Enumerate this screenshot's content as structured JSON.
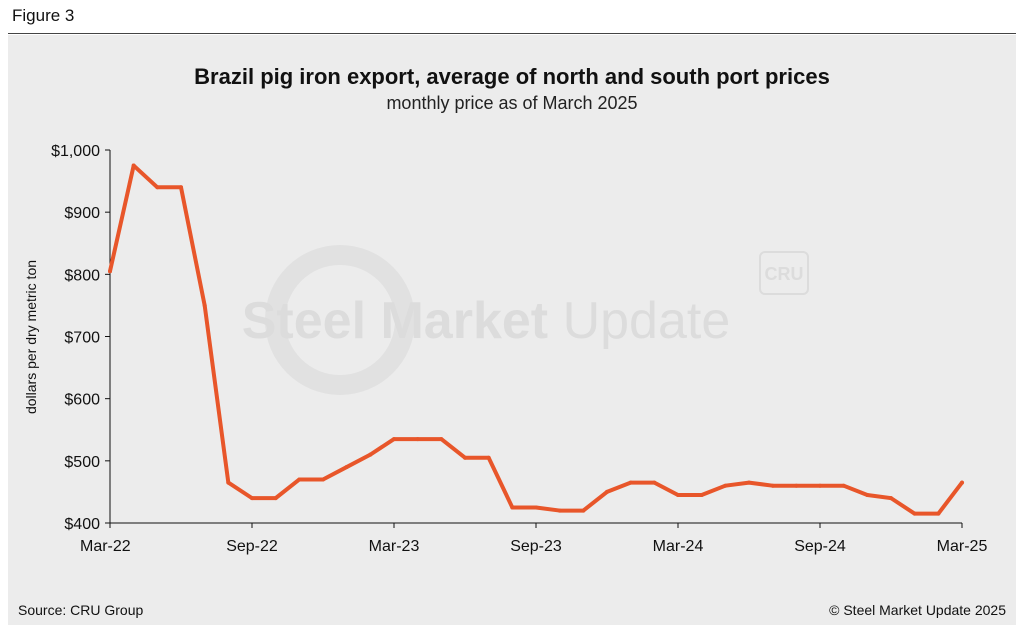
{
  "figure_label": "Figure 3",
  "footer": {
    "source": "Source: CRU Group",
    "copyright": "© Steel Market Update 2025"
  },
  "watermark": {
    "text_bold": "Steel Market",
    "text_light": "Update",
    "logo": "CRU"
  },
  "colors": {
    "line": "#e8562a",
    "panel": "#ececec"
  },
  "chart_data": {
    "type": "line",
    "title": "Brazil pig iron export, average of north and south port prices",
    "subtitle": "monthly price as of March 2025",
    "xlabel": "",
    "ylabel": "dollars per dry metric ton",
    "ylim": [
      400,
      1000
    ],
    "y_ticks": [
      400,
      500,
      600,
      700,
      800,
      900,
      1000
    ],
    "y_tick_labels": [
      "$400",
      "$500",
      "$600",
      "$700",
      "$800",
      "$900",
      "$1,000"
    ],
    "x_tick_labels": [
      "Mar-22",
      "Sep-22",
      "Mar-23",
      "Sep-23",
      "Mar-24",
      "Sep-24",
      "Mar-25"
    ],
    "x_tick_index": [
      0,
      6,
      12,
      18,
      24,
      30,
      36
    ],
    "grid": false,
    "series": [
      {
        "values": [
          805,
          975,
          940,
          940,
          750,
          465,
          440,
          440,
          470,
          470,
          490,
          510,
          535,
          535,
          535,
          505,
          505,
          425,
          425,
          420,
          420,
          450,
          465,
          465,
          445,
          445,
          460,
          465,
          460,
          460,
          460,
          460,
          445,
          440,
          415,
          415,
          465
        ]
      }
    ]
  }
}
